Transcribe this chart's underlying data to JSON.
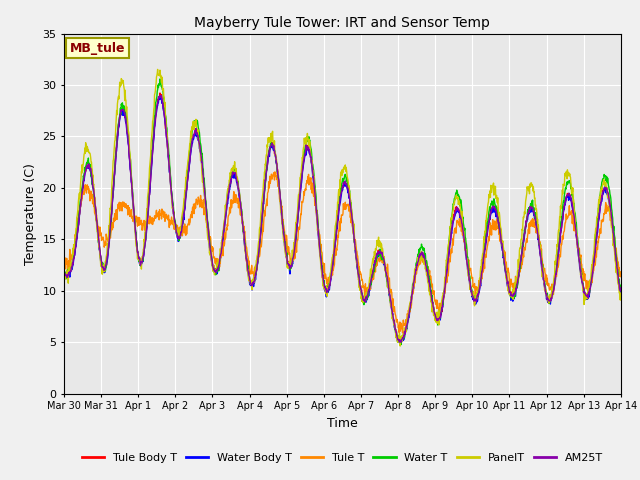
{
  "title": "Mayberry Tule Tower: IRT and Sensor Temp",
  "xlabel": "Time",
  "ylabel": "Temperature (C)",
  "ylim": [
    0,
    35
  ],
  "background_color": "#f0f0f0",
  "plot_bg_color": "#e8e8e8",
  "annotation_text": "MB_tule",
  "annotation_color": "#8b0000",
  "annotation_bg": "#ffffcc",
  "annotation_border": "#999900",
  "series_colors": {
    "Tule Body T": "#ff0000",
    "Water Body T": "#0000ff",
    "Tule T": "#ff8800",
    "Water T": "#00cc00",
    "PanelT": "#cccc00",
    "AM25T": "#8800aa"
  },
  "xtick_labels": [
    "Mar 30",
    "Mar 31",
    "Apr 1",
    "Apr 2",
    "Apr 3",
    "Apr 4",
    "Apr 5",
    "Apr 6",
    "Apr 7",
    "Apr 8",
    "Apr 9",
    "Apr 10",
    "Apr 11",
    "Apr 12",
    "Apr 13",
    "Apr 14"
  ],
  "ytick_labels": [
    "0",
    "5",
    "10",
    "15",
    "20",
    "25",
    "30",
    "35"
  ],
  "linewidth": 1.0
}
